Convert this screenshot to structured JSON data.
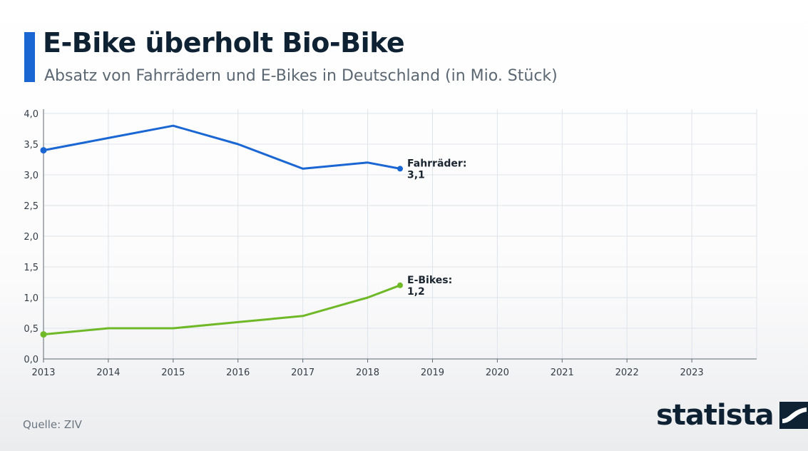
{
  "header": {
    "title": "E-Bike überholt Bio-Bike",
    "subtitle": "Absatz von Fahrrädern und E-Bikes in Deutschland (in Mio. Stück)"
  },
  "footer": {
    "source": "Quelle: ZIV",
    "brand": "statista"
  },
  "colors": {
    "fahrraeder": "#1a66d3",
    "ebikes": "#6fb827",
    "accent": "#1a66d3",
    "text": "#0f2233"
  },
  "chart_data": {
    "type": "line",
    "title": "E-Bike überholt Bio-Bike",
    "subtitle": "Absatz von Fahrrädern und E-Bikes in Deutschland (in Mio. Stück)",
    "x_ticks": [
      "2013",
      "2014",
      "2015",
      "2016",
      "2017",
      "2018",
      "2019",
      "2020",
      "2021",
      "2022",
      "2023"
    ],
    "y_ticks": [
      "0,0",
      "0,5",
      "1,0",
      "1,5",
      "2,0",
      "2,5",
      "3,0",
      "3,5",
      "4,0"
    ],
    "xlim": [
      2013,
      2024
    ],
    "ylim": [
      0,
      4
    ],
    "grid": true,
    "series": [
      {
        "key": "fahrraeder",
        "label_name": "Fahrräder:",
        "label_value": "3,1",
        "points": [
          {
            "x": 2013,
            "y": 3.4
          },
          {
            "x": 2014,
            "y": 3.6
          },
          {
            "x": 2015,
            "y": 3.8
          },
          {
            "x": 2016,
            "y": 3.5
          },
          {
            "x": 2017,
            "y": 3.1
          },
          {
            "x": 2018,
            "y": 3.2
          },
          {
            "x": 2018.5,
            "y": 3.1
          }
        ]
      },
      {
        "key": "ebikes",
        "label_name": "E-Bikes:",
        "label_value": "1,2",
        "points": [
          {
            "x": 2013,
            "y": 0.4
          },
          {
            "x": 2014,
            "y": 0.5
          },
          {
            "x": 2015,
            "y": 0.5
          },
          {
            "x": 2016,
            "y": 0.6
          },
          {
            "x": 2017,
            "y": 0.7
          },
          {
            "x": 2018,
            "y": 1.0
          },
          {
            "x": 2018.5,
            "y": 1.2
          }
        ]
      }
    ]
  }
}
